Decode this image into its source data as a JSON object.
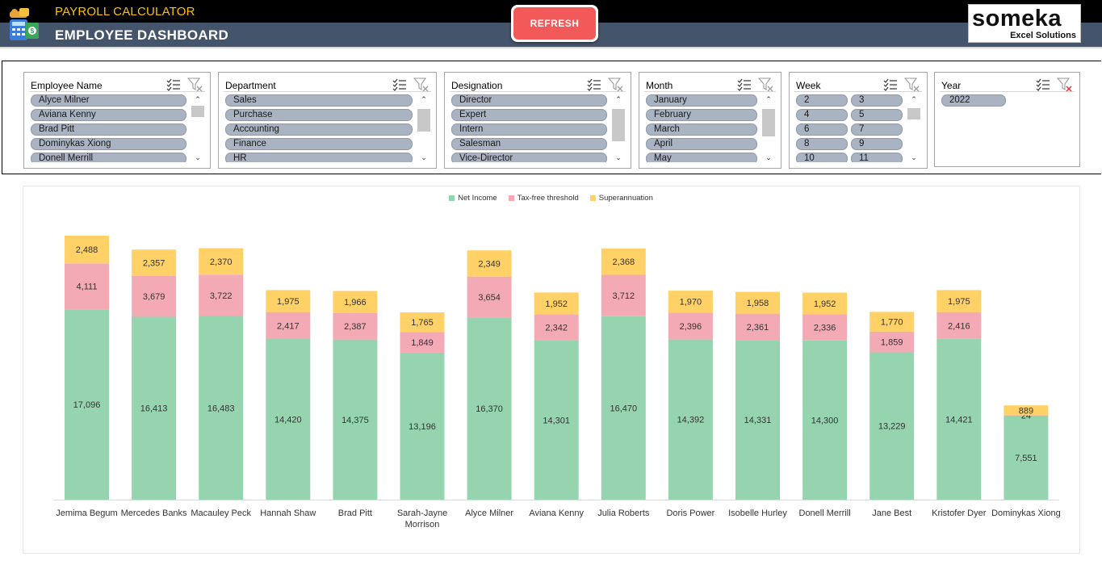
{
  "header": {
    "app_title": "PAYROLL CALCULATOR",
    "page_title": "EMPLOYEE DASHBOARD",
    "refresh_label": "REFRESH",
    "logo_name": "someka",
    "logo_sub": "Excel Solutions"
  },
  "colors": {
    "header_top": "#000000",
    "header_bottom": "#44546a",
    "app_title": "#ffc000",
    "refresh": "#f25a5a",
    "slicer_item": "#aab3c2",
    "net_income": "#96d4b0",
    "tax_free": "#f3aab5",
    "superannuation": "#ffd166"
  },
  "slicers": [
    {
      "id": "employee",
      "title": "Employee Name",
      "items": [
        "Alyce Milner",
        "Aviana Kenny",
        "Brad Pitt",
        "Dominykas Xiong",
        "Donell Merrill"
      ]
    },
    {
      "id": "department",
      "title": "Department",
      "items": [
        "Sales",
        "Purchase",
        "Accounting",
        "Finance",
        "HR"
      ]
    },
    {
      "id": "designation",
      "title": "Designation",
      "items": [
        "Director",
        "Expert",
        "Intern",
        "Salesman",
        "Vice-Director"
      ]
    },
    {
      "id": "month",
      "title": "Month",
      "items": [
        "January",
        "February",
        "March",
        "April",
        "May"
      ]
    },
    {
      "id": "week",
      "title": "Week",
      "items": [
        "2",
        "3",
        "4",
        "5",
        "6",
        "7",
        "8",
        "9",
        "10",
        "11"
      ]
    },
    {
      "id": "year",
      "title": "Year",
      "items": [
        "2022"
      ]
    }
  ],
  "chart_data": {
    "type": "bar",
    "stacked": true,
    "legend_position": "top",
    "grid": false,
    "categories": [
      "Jemima Begum",
      "Mercedes Banks",
      "Macauley Peck",
      "Hannah Shaw",
      "Brad Pitt",
      "Sarah-Jayne Morrison",
      "Alyce Milner",
      "Aviana Kenny",
      "Julia Roberts",
      "Doris Power",
      "Isobelle Hurley",
      "Donell Merrill",
      "Jane Best",
      "Kristofer Dyer",
      "Dominykas Xiong"
    ],
    "series": [
      {
        "name": "Net Income",
        "color": "#96d4b0",
        "values": [
          17096,
          16413,
          16483,
          14420,
          14375,
          13196,
          16370,
          14301,
          16470,
          14392,
          14331,
          14300,
          13229,
          14421,
          7551
        ]
      },
      {
        "name": "Tax-free threshold",
        "color": "#f3aab5",
        "values": [
          4111,
          3679,
          3722,
          2417,
          2387,
          1849,
          3654,
          2342,
          3712,
          2396,
          2361,
          2336,
          1859,
          2416,
          24
        ]
      },
      {
        "name": "Superannuation",
        "color": "#ffd166",
        "values": [
          2488,
          2357,
          2370,
          1975,
          1966,
          1765,
          2349,
          1952,
          2368,
          1970,
          1958,
          1952,
          1770,
          1975,
          889
        ]
      }
    ],
    "labels": [
      [
        "17,096",
        "16,413",
        "16,483",
        "14,420",
        "14,375",
        "13,196",
        "16,370",
        "14,301",
        "16,470",
        "14,392",
        "14,331",
        "14,300",
        "13,229",
        "14,421",
        "7,551"
      ],
      [
        "4,111",
        "3,679",
        "3,722",
        "2,417",
        "2,387",
        "1,849",
        "3,654",
        "2,342",
        "3,712",
        "2,396",
        "2,361",
        "2,336",
        "1,859",
        "2,416",
        "24"
      ],
      [
        "2,488",
        "2,357",
        "2,370",
        "1,975",
        "1,966",
        "1,765",
        "2,349",
        "1,952",
        "2,368",
        "1,970",
        "1,958",
        "1,952",
        "1,770",
        "1,975",
        "889"
      ]
    ]
  }
}
